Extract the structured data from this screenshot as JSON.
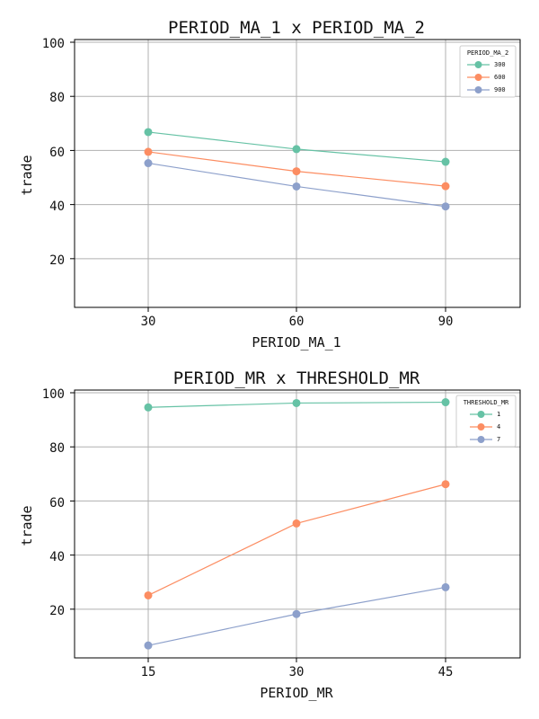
{
  "chart_data": [
    {
      "type": "line",
      "title": "PERIOD_MA_1 x PERIOD_MA_2",
      "xlabel": "PERIOD_MA_1",
      "ylabel": "trade",
      "categories": [
        "30",
        "60",
        "90"
      ],
      "yticks": [
        "20",
        "40",
        "60",
        "80",
        "100"
      ],
      "ylim": [
        2,
        101
      ],
      "grid": true,
      "legend": {
        "title": "PERIOD_MA_2",
        "position": "top-right"
      },
      "series": [
        {
          "name": "300",
          "color": "#66c2a5",
          "values": [
            66.8,
            60.5,
            55.8
          ]
        },
        {
          "name": "600",
          "color": "#fc8d62",
          "values": [
            59.5,
            52.3,
            46.8
          ]
        },
        {
          "name": "900",
          "color": "#8da0cb",
          "values": [
            55.3,
            46.7,
            39.3
          ]
        }
      ]
    },
    {
      "type": "line",
      "title": "PERIOD_MR x THRESHOLD_MR",
      "xlabel": "PERIOD_MR",
      "ylabel": "trade",
      "categories": [
        "15",
        "30",
        "45"
      ],
      "yticks": [
        "20",
        "40",
        "60",
        "80",
        "100"
      ],
      "ylim": [
        2,
        101
      ],
      "grid": true,
      "legend": {
        "title": "THRESHOLD_MR",
        "position": "top-right"
      },
      "series": [
        {
          "name": "1",
          "color": "#66c2a5",
          "values": [
            94.6,
            96.2,
            96.5
          ]
        },
        {
          "name": "4",
          "color": "#fc8d62",
          "values": [
            25.1,
            51.7,
            66.2
          ]
        },
        {
          "name": "7",
          "color": "#8da0cb",
          "values": [
            6.6,
            18.2,
            28.1
          ]
        }
      ]
    }
  ]
}
